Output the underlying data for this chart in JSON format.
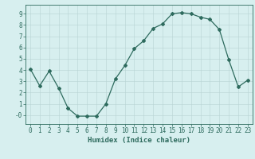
{
  "x": [
    0,
    1,
    2,
    3,
    4,
    5,
    6,
    7,
    8,
    9,
    10,
    11,
    12,
    13,
    14,
    15,
    16,
    17,
    18,
    19,
    20,
    21,
    22,
    23
  ],
  "y": [
    4.1,
    2.6,
    3.9,
    2.4,
    0.6,
    -0.1,
    -0.1,
    -0.1,
    1.0,
    3.2,
    4.4,
    5.9,
    6.6,
    7.7,
    8.1,
    9.0,
    9.1,
    9.0,
    8.7,
    8.5,
    7.6,
    4.9,
    2.5,
    3.1
  ],
  "xlabel": "Humidex (Indice chaleur)",
  "line_color": "#2e6b5e",
  "marker": "D",
  "markersize": 2.0,
  "linewidth": 0.9,
  "bg_color": "#d7efef",
  "grid_color": "#b8d4d4",
  "axis_color": "#2e6b5e",
  "xlim": [
    -0.5,
    23.5
  ],
  "ylim": [
    -0.8,
    9.8
  ],
  "yticks": [
    0,
    1,
    2,
    3,
    4,
    5,
    6,
    7,
    8,
    9
  ],
  "xticks": [
    0,
    1,
    2,
    3,
    4,
    5,
    6,
    7,
    8,
    9,
    10,
    11,
    12,
    13,
    14,
    15,
    16,
    17,
    18,
    19,
    20,
    21,
    22,
    23
  ],
  "xtick_labels": [
    "0",
    "1",
    "2",
    "3",
    "4",
    "5",
    "6",
    "7",
    "8",
    "9",
    "10",
    "11",
    "12",
    "13",
    "14",
    "15",
    "16",
    "17",
    "18",
    "19",
    "20",
    "21",
    "22",
    "23"
  ],
  "ytick_labels": [
    "",
    "1",
    "2",
    "3",
    "4",
    "5",
    "6",
    "7",
    "8",
    "9"
  ],
  "ytick_labels_display": [
    "-0",
    "1",
    "2",
    "3",
    "4",
    "5",
    "6",
    "7",
    "8",
    "9"
  ],
  "tick_fontsize": 5.5,
  "xlabel_fontsize": 6.5
}
